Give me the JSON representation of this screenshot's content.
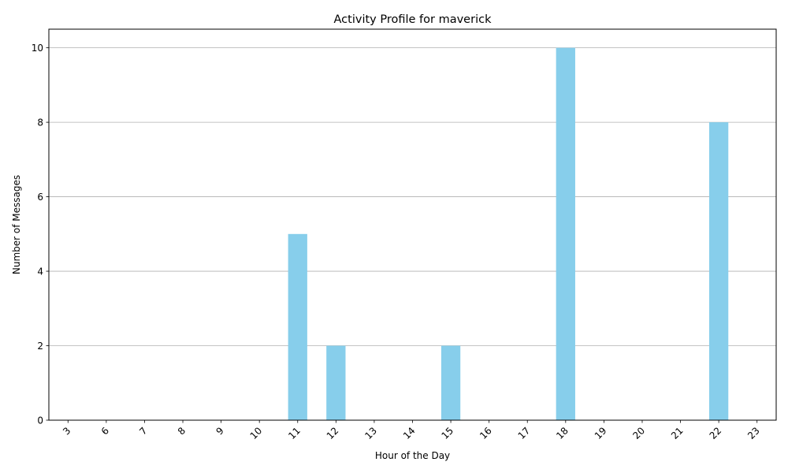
{
  "chart_data": {
    "type": "bar",
    "title": "Activity Profile for maverick",
    "xlabel": "Hour of the Day",
    "ylabel": "Number of Messages",
    "categories": [
      "3",
      "6",
      "7",
      "8",
      "9",
      "10",
      "11",
      "12",
      "13",
      "14",
      "15",
      "16",
      "17",
      "18",
      "19",
      "20",
      "21",
      "22",
      "23"
    ],
    "values": [
      0,
      0,
      0,
      0,
      0,
      0,
      5,
      2,
      0,
      0,
      2,
      0,
      0,
      10,
      0,
      0,
      0,
      8,
      0
    ],
    "ylim": [
      0,
      10.5
    ],
    "yticks": [
      0,
      2,
      4,
      6,
      8,
      10
    ],
    "grid": "y",
    "bar_color": "#87ceeb"
  }
}
